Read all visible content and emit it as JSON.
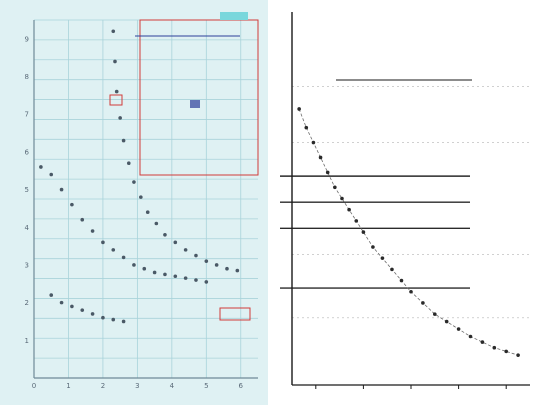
{
  "colors": {
    "left_bg": "#dff1f3",
    "left_grid": "#a9d3da",
    "left_axis": "#6f8a97",
    "left_points": "#4a5966",
    "left_highlight": "#d23a3a",
    "left_title": "#2c3f9a",
    "left_badge": "#7ad7dc",
    "right_bg": "#ffffff",
    "right_axis": "#1a1a1a",
    "right_grid": "#2a2a2a",
    "right_points": "#2a2a2a"
  },
  "chart_data": [
    {
      "type": "scatter",
      "title": "",
      "xlabel": "",
      "ylabel": "",
      "x_ticks": [
        "0",
        "1",
        "2",
        "3",
        "4",
        "5",
        "6"
      ],
      "y_ticks": [
        "1",
        "2",
        "3",
        "4",
        "5",
        "6",
        "7",
        "8",
        "9"
      ],
      "xlim": [
        0,
        6.5
      ],
      "ylim": [
        0,
        9.5
      ],
      "grid": true,
      "series": [
        {
          "x": [
            2.3,
            2.35,
            2.4,
            2.5,
            2.6,
            2.75,
            2.9,
            3.1,
            3.3,
            3.55,
            3.8,
            4.1,
            4.4,
            4.7,
            5.0,
            5.3,
            5.6,
            5.9
          ],
          "y": [
            9.2,
            8.4,
            7.6,
            6.9,
            6.3,
            5.7,
            5.2,
            4.8,
            4.4,
            4.1,
            3.8,
            3.6,
            3.4,
            3.25,
            3.1,
            3.0,
            2.9,
            2.85
          ]
        },
        {
          "x": [
            0.2,
            0.5,
            0.8,
            1.1,
            1.4,
            1.7,
            2.0,
            2.3,
            2.6,
            2.9,
            3.2,
            3.5,
            3.8,
            4.1,
            4.4,
            4.7,
            5.0
          ],
          "y": [
            5.6,
            5.4,
            5.0,
            4.6,
            4.2,
            3.9,
            3.6,
            3.4,
            3.2,
            3.0,
            2.9,
            2.8,
            2.75,
            2.7,
            2.65,
            2.6,
            2.55
          ]
        },
        {
          "x": [
            0.5,
            0.8,
            1.1,
            1.4,
            1.7,
            2.0,
            2.3,
            2.6
          ],
          "y": [
            2.2,
            2.0,
            1.9,
            1.8,
            1.7,
            1.6,
            1.55,
            1.5
          ]
        }
      ]
    },
    {
      "type": "scatter",
      "title": "",
      "xlabel": "",
      "ylabel": "",
      "x_ticks": [
        "",
        "",
        "",
        "",
        ""
      ],
      "xlim": [
        0,
        10
      ],
      "ylim": [
        0,
        10
      ],
      "grid": true,
      "series": [
        {
          "x": [
            0.3,
            0.6,
            0.9,
            1.2,
            1.5,
            1.8,
            2.1,
            2.4,
            2.7,
            3.0,
            3.4,
            3.8,
            4.2,
            4.6,
            5.0,
            5.5,
            6.0,
            6.5,
            7.0,
            7.5,
            8.0,
            8.5,
            9.0,
            9.5
          ],
          "y": [
            7.4,
            6.9,
            6.5,
            6.1,
            5.7,
            5.3,
            5.0,
            4.7,
            4.4,
            4.1,
            3.7,
            3.4,
            3.1,
            2.8,
            2.5,
            2.2,
            1.9,
            1.7,
            1.5,
            1.3,
            1.15,
            1.0,
            0.9,
            0.8
          ]
        }
      ]
    }
  ]
}
